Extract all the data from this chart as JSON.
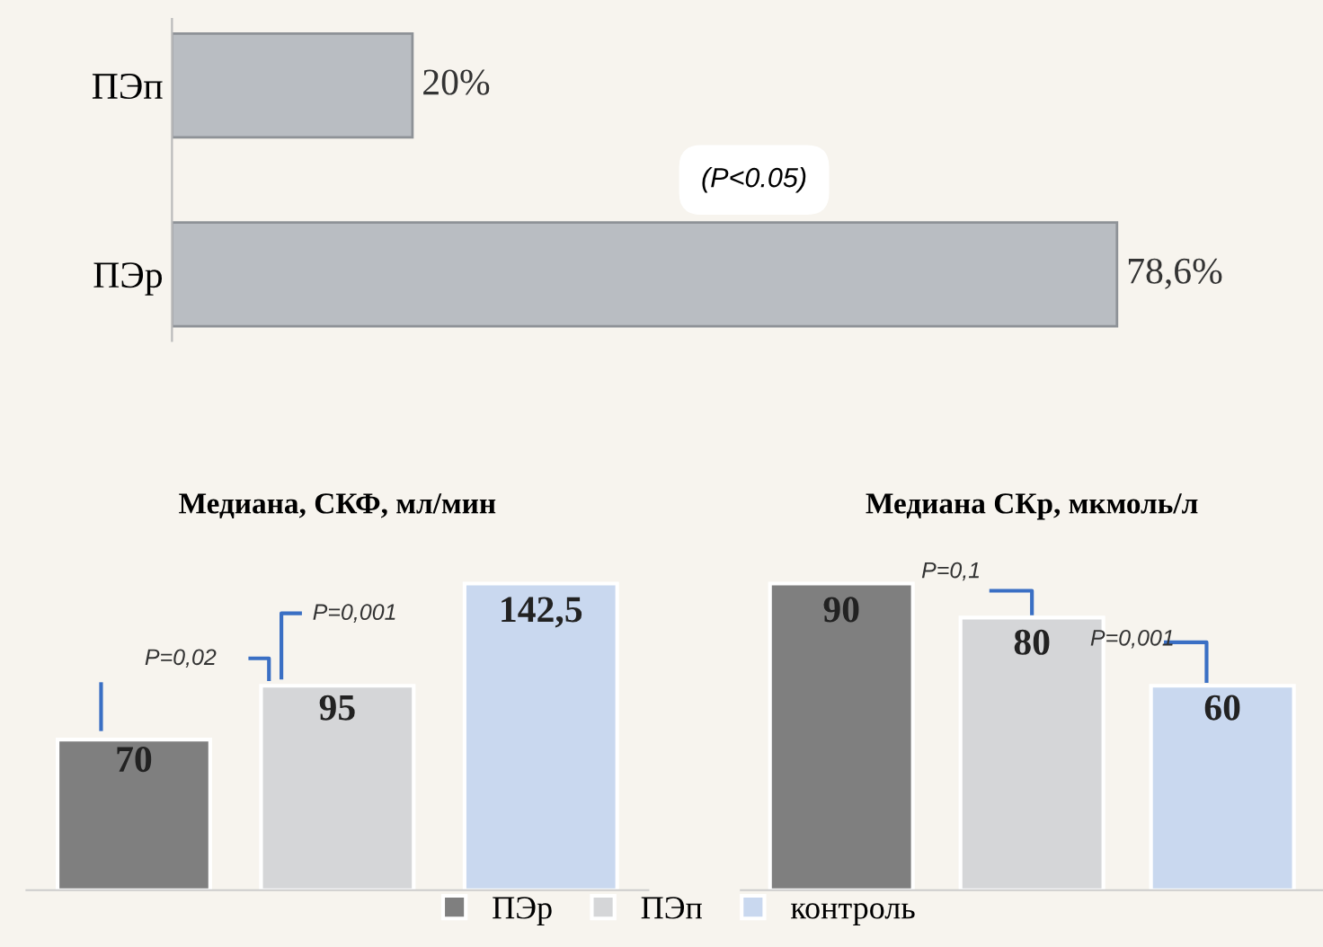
{
  "chart_data": [
    {
      "type": "bar",
      "orientation": "horizontal",
      "categories": [
        "ПЭп",
        "ПЭр"
      ],
      "values": [
        20,
        78.6
      ],
      "color": "#b9bdc2",
      "value_labels": [
        "20%",
        "78,6%"
      ],
      "annotations": [
        "(P<0.05)"
      ],
      "grid": false,
      "legend": false
    },
    {
      "type": "bar",
      "title": "Медиана, СКФ, мл/мин",
      "categories": [
        null
      ],
      "tick_labels": false,
      "legend": "bottom",
      "series": [
        {
          "name": "ПЭр",
          "color": "#7f7f7f",
          "values": [
            70
          ],
          "value_labels": [
            "70"
          ]
        },
        {
          "name": "ПЭп",
          "color": "#d5d6d8",
          "values": [
            95
          ],
          "value_labels": [
            "95"
          ]
        },
        {
          "name": "контроль",
          "color": "#c9d8ef",
          "values": [
            142.5
          ],
          "value_labels": [
            "142,5"
          ]
        }
      ],
      "annotations": [
        "P=0,02",
        "P=0,001"
      ],
      "grid": false
    },
    {
      "type": "bar",
      "title": "Медиана СКр, мкмоль/л",
      "categories": [
        null
      ],
      "tick_labels": false,
      "legend": false,
      "series": [
        {
          "color": "#7f7f7f",
          "values": [
            90
          ],
          "value_labels": [
            "90"
          ]
        },
        {
          "color": "#d5d6d8",
          "values": [
            80
          ],
          "value_labels": [
            "80"
          ]
        },
        {
          "color": "#c9d8ef",
          "values": [
            60
          ],
          "value_labels": [
            "60"
          ]
        }
      ],
      "annotations": [
        "P=0,1",
        "P=0,001"
      ],
      "grid": false
    }
  ]
}
